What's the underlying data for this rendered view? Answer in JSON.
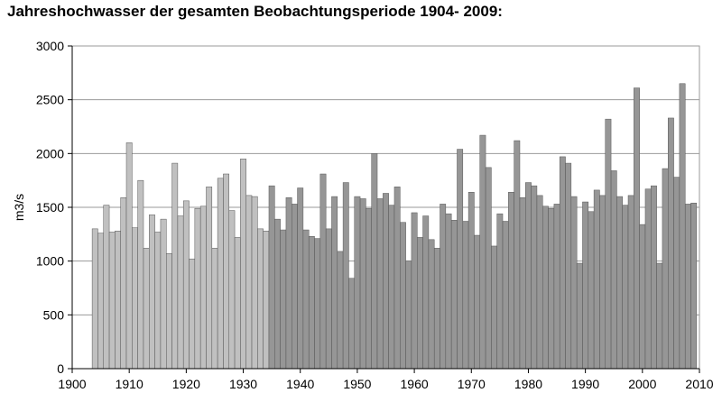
{
  "chart_data": {
    "type": "bar",
    "title": "Jahreshochwasser der gesamten Beobachtungsperiode 1904- 2009:",
    "ylabel": "m3/s",
    "xlabel": "",
    "xlim": [
      1900,
      2010
    ],
    "ylim": [
      0,
      3000
    ],
    "x_ticks": [
      1900,
      1910,
      1920,
      1930,
      1940,
      1950,
      1960,
      1970,
      1980,
      1990,
      2000,
      2010
    ],
    "y_ticks": [
      0,
      500,
      1000,
      1500,
      2000,
      2500,
      3000
    ],
    "grid": true,
    "colors": {
      "early": "#c0c0c0",
      "late": "#969696",
      "bar_stroke": "#555555",
      "grid": "#9a9a9a",
      "plot_background": "#ffffff"
    },
    "series": [
      {
        "color_key": "early",
        "x": [
          1904,
          1905,
          1906,
          1907,
          1908,
          1909,
          1910,
          1911,
          1912,
          1913,
          1914,
          1915,
          1916,
          1917,
          1918,
          1919,
          1920,
          1921,
          1922,
          1923,
          1924,
          1925,
          1926,
          1927,
          1928,
          1929,
          1930,
          1931,
          1932,
          1933,
          1934
        ],
        "values": [
          1300,
          1260,
          1520,
          1270,
          1280,
          1590,
          2100,
          1310,
          1750,
          1120,
          1430,
          1270,
          1390,
          1070,
          1910,
          1420,
          1560,
          1020,
          1490,
          1510,
          1690,
          1120,
          1770,
          1810,
          1470,
          1220,
          1950,
          1610,
          1600,
          1300,
          1280
        ]
      },
      {
        "color_key": "late",
        "x": [
          1935,
          1936,
          1937,
          1938,
          1939,
          1940,
          1941,
          1942,
          1943,
          1944,
          1945,
          1946,
          1947,
          1948,
          1949,
          1950,
          1951,
          1952,
          1953,
          1954,
          1955,
          1956,
          1957,
          1958,
          1959,
          1960,
          1961,
          1962,
          1963,
          1964,
          1965,
          1966,
          1967,
          1968,
          1969,
          1970,
          1971,
          1972,
          1973,
          1974,
          1975,
          1976,
          1977,
          1978,
          1979,
          1980,
          1981,
          1982,
          1983,
          1984,
          1985,
          1986,
          1987,
          1988,
          1989,
          1990,
          1991,
          1992,
          1993,
          1994,
          1995,
          1996,
          1997,
          1998,
          1999,
          2000,
          2001,
          2002,
          2003,
          2004,
          2005,
          2006,
          2007,
          2008,
          2009
        ],
        "values": [
          1700,
          1390,
          1290,
          1590,
          1530,
          1680,
          1290,
          1230,
          1210,
          1810,
          1300,
          1600,
          1090,
          1730,
          840,
          1600,
          1580,
          1490,
          2000,
          1580,
          1630,
          1520,
          1690,
          1360,
          1000,
          1450,
          1220,
          1420,
          1200,
          1120,
          1530,
          1440,
          1380,
          2040,
          1370,
          1640,
          1240,
          2170,
          1870,
          1140,
          1440,
          1370,
          1640,
          2120,
          1590,
          1730,
          1700,
          1610,
          1510,
          1490,
          1530,
          1970,
          1910,
          1600,
          980,
          1550,
          1460,
          1660,
          1610,
          2320,
          1840,
          1600,
          1520,
          1610,
          2610,
          1340,
          1670,
          1700,
          980,
          1860,
          2330,
          1780,
          2650,
          1530,
          1540
        ]
      }
    ]
  }
}
